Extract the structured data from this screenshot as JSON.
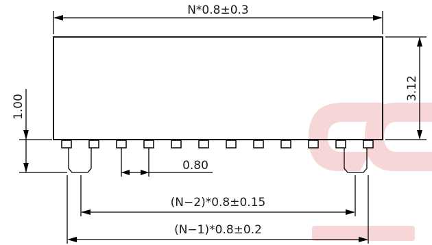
{
  "drawing": {
    "top_width": "N*0.8±0.3",
    "height": "3.12",
    "standoff": "1.00",
    "pitch": "0.80",
    "inner_span": "(N−2)*0.8±0.15",
    "outer_span": "(N−1)*0.8±0.2"
  },
  "pins": {
    "count": 12
  },
  "colors": {
    "line": "#000000",
    "text": "#1a1a1a",
    "watermark": "#f6d6d6"
  }
}
